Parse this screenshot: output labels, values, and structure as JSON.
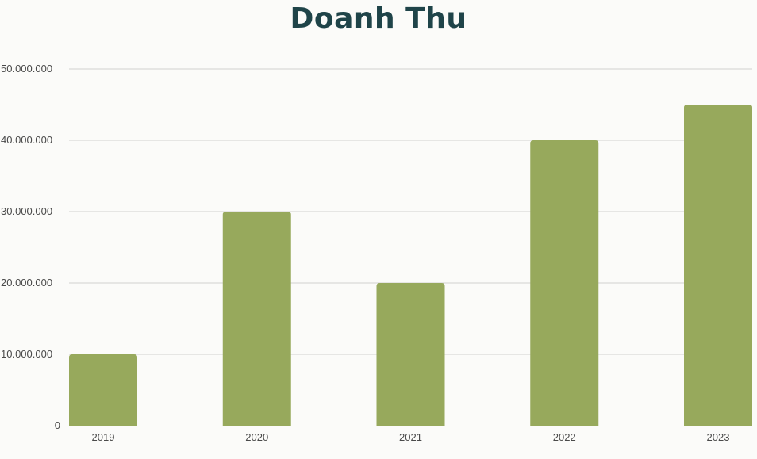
{
  "chart_data": {
    "type": "bar",
    "title": "Doanh Thu",
    "categories": [
      "2019",
      "2020",
      "2021",
      "2022",
      "2023"
    ],
    "values": [
      10000000,
      30000000,
      20000000,
      40000000,
      45000000
    ],
    "ylim": [
      0,
      50000000
    ],
    "yticks": [
      0,
      10000000,
      20000000,
      30000000,
      40000000,
      50000000
    ],
    "ytick_labels": [
      "0",
      "10.000.000",
      "20.000.000",
      "30.000.000",
      "40.000.000",
      "50.000.000"
    ],
    "bar_color": "#97a95c",
    "grid": true,
    "gridline_color": "#d2d2ce"
  }
}
